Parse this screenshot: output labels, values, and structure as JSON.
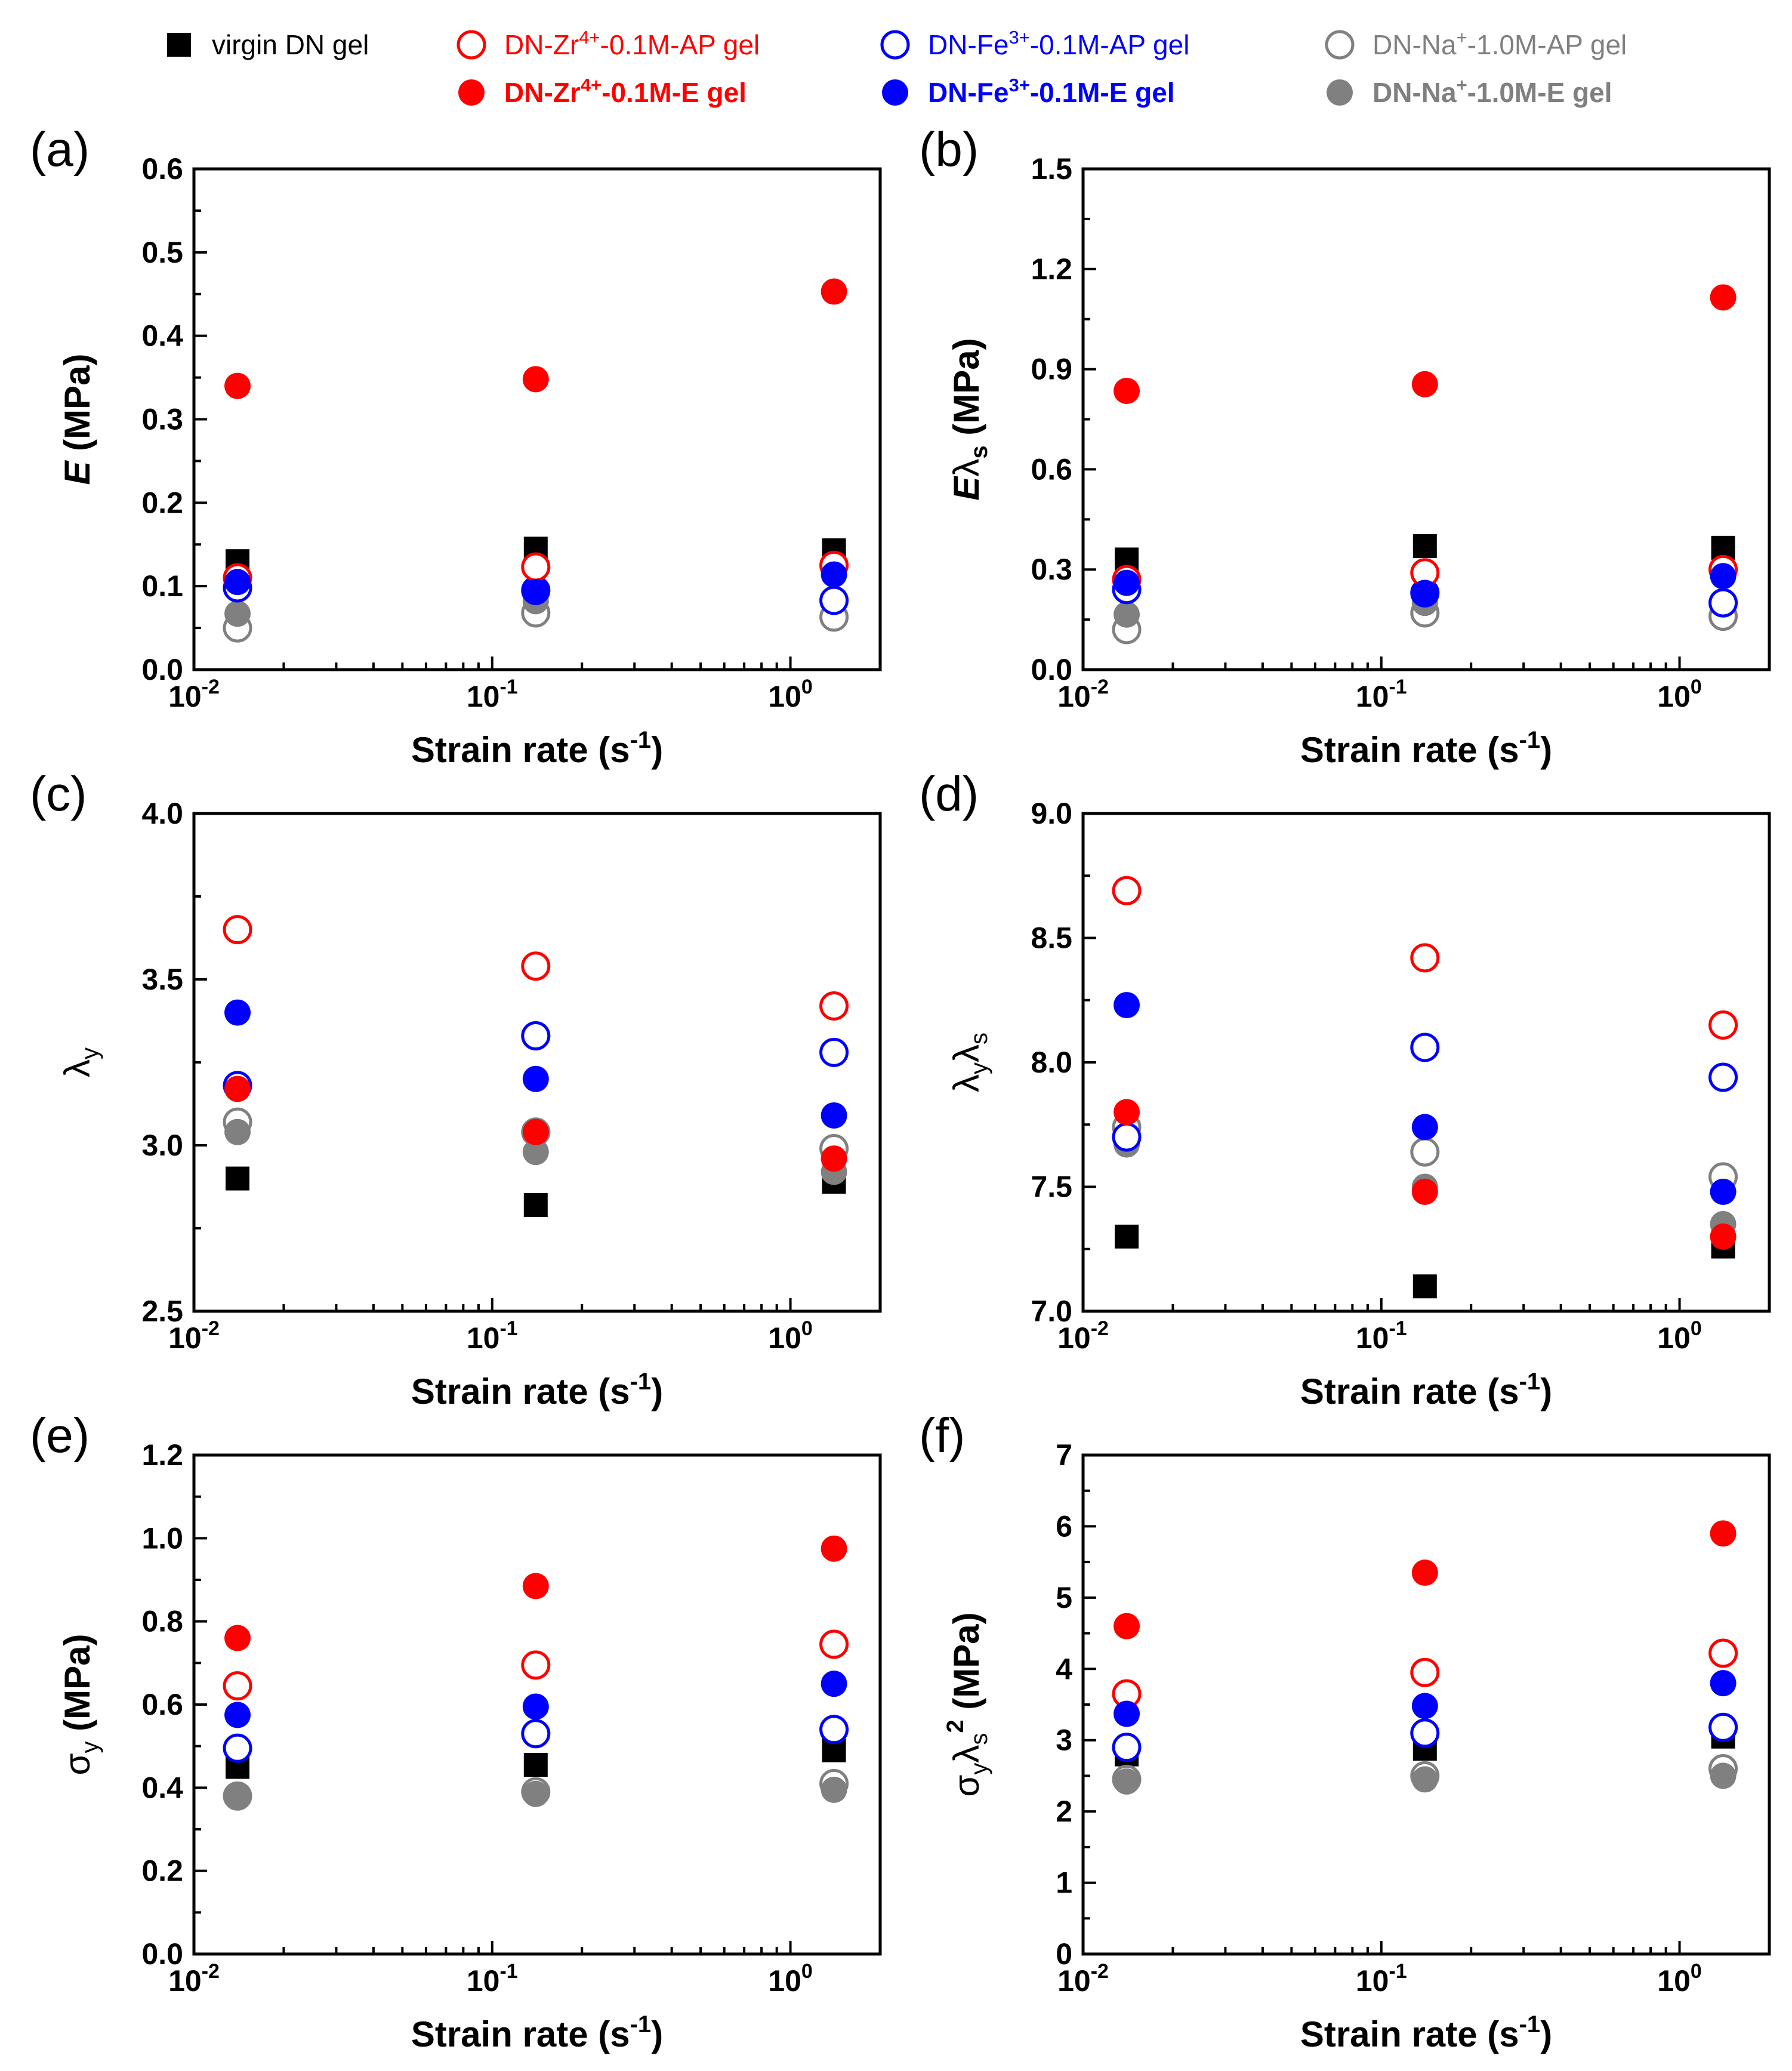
{
  "figure": {
    "legend": [
      {
        "id": "virgin",
        "label": "virgin DN gel",
        "color": "#000000",
        "marker": "square",
        "fill": true,
        "bold": false
      },
      {
        "id": "zr_ap",
        "label": "DN-Zr4+-0.1M-AP gel",
        "base": "DN-Zr",
        "sup": "4+",
        "rest": "-0.1M-AP gel",
        "color": "#ff0000",
        "marker": "circle",
        "fill": false,
        "bold": false
      },
      {
        "id": "fe_ap",
        "label": "DN-Fe3+-0.1M-AP gel",
        "base": "DN-Fe",
        "sup": "3+",
        "rest": "-0.1M-AP gel",
        "color": "#0000ff",
        "marker": "circle",
        "fill": false,
        "bold": false
      },
      {
        "id": "na_ap",
        "label": "DN-Na+-1.0M-AP gel",
        "base": "DN-Na",
        "sup": "+",
        "rest": "-1.0M-AP gel",
        "color": "#808080",
        "marker": "circle",
        "fill": false,
        "bold": false
      },
      {
        "id": "zr_e",
        "label": "DN-Zr4+-0.1M-E gel",
        "base": "DN-Zr",
        "sup": "4+",
        "rest": "-0.1M-E  gel",
        "color": "#ff0000",
        "marker": "circle",
        "fill": true,
        "bold": true
      },
      {
        "id": "fe_e",
        "label": "DN-Fe3+-0.1M-E gel",
        "base": "DN-Fe",
        "sup": "3+",
        "rest": "-0.1M-E gel",
        "color": "#0000ff",
        "marker": "circle",
        "fill": true,
        "bold": true
      },
      {
        "id": "na_e",
        "label": "DN-Na+-1.0M-E gel",
        "base": "DN-Na",
        "sup": "+",
        "rest": "-1.0M-E gel",
        "color": "#808080",
        "marker": "circle",
        "fill": true,
        "bold": true
      }
    ]
  },
  "chart_data": [
    {
      "panel": "(a)",
      "type": "scatter",
      "xscale": "log",
      "xlabel": "Strain rate (s-1)",
      "ylabel": "E (MPa)",
      "xlim": [
        0.01,
        2
      ],
      "ylim": [
        0,
        0.6
      ],
      "yticks": [
        "0.0",
        "0.1",
        "0.2",
        "0.3",
        "0.4",
        "0.5",
        "0.6"
      ],
      "x": [
        0.014,
        0.14,
        1.4
      ],
      "series": [
        {
          "id": "virgin",
          "values": [
            0.13,
            0.145,
            0.143
          ]
        },
        {
          "id": "zr_ap",
          "values": [
            0.11,
            0.123,
            0.125
          ]
        },
        {
          "id": "fe_ap",
          "values": [
            0.098,
            0.095,
            0.083
          ]
        },
        {
          "id": "na_ap",
          "values": [
            0.05,
            0.068,
            0.063
          ]
        },
        {
          "id": "zr_e",
          "values": [
            0.34,
            0.348,
            0.453
          ]
        },
        {
          "id": "fe_e",
          "values": [
            0.105,
            0.093,
            0.114
          ]
        },
        {
          "id": "na_e",
          "values": [
            0.067,
            0.082,
            0.083
          ]
        }
      ]
    },
    {
      "panel": "(b)",
      "type": "scatter",
      "xscale": "log",
      "xlabel": "Strain rate (s-1)",
      "ylabel": "Eλs (MPa)",
      "xlim": [
        0.01,
        2
      ],
      "ylim": [
        0,
        1.5
      ],
      "yticks": [
        "0.0",
        "0.3",
        "0.6",
        "0.9",
        "1.2",
        "1.5"
      ],
      "x": [
        0.014,
        0.14,
        1.4
      ],
      "series": [
        {
          "id": "virgin",
          "values": [
            0.33,
            0.37,
            0.365
          ]
        },
        {
          "id": "zr_ap",
          "values": [
            0.27,
            0.29,
            0.3
          ]
        },
        {
          "id": "fe_ap",
          "values": [
            0.24,
            0.23,
            0.2
          ]
        },
        {
          "id": "na_ap",
          "values": [
            0.12,
            0.17,
            0.16
          ]
        },
        {
          "id": "zr_e",
          "values": [
            0.835,
            0.855,
            1.115
          ]
        },
        {
          "id": "fe_e",
          "values": [
            0.26,
            0.23,
            0.28
          ]
        },
        {
          "id": "na_e",
          "values": [
            0.165,
            0.2,
            0.2
          ]
        }
      ]
    },
    {
      "panel": "(c)",
      "type": "scatter",
      "xscale": "log",
      "xlabel": "Strain rate (s-1)",
      "ylabel": "λy",
      "xlim": [
        0.01,
        2
      ],
      "ylim": [
        2.5,
        4.0
      ],
      "yticks": [
        "2.5",
        "3.0",
        "3.5",
        "4.0"
      ],
      "x": [
        0.014,
        0.14,
        1.4
      ],
      "series": [
        {
          "id": "virgin",
          "values": [
            2.9,
            2.82,
            2.89
          ]
        },
        {
          "id": "zr_ap",
          "values": [
            3.65,
            3.54,
            3.42
          ]
        },
        {
          "id": "fe_ap",
          "values": [
            3.18,
            3.33,
            3.28
          ]
        },
        {
          "id": "na_ap",
          "values": [
            3.07,
            3.04,
            2.99
          ]
        },
        {
          "id": "zr_e",
          "values": [
            3.17,
            3.04,
            2.96
          ]
        },
        {
          "id": "fe_e",
          "values": [
            3.4,
            3.2,
            3.09
          ]
        },
        {
          "id": "na_e",
          "values": [
            3.04,
            2.98,
            2.92
          ]
        }
      ]
    },
    {
      "panel": "(d)",
      "type": "scatter",
      "xscale": "log",
      "xlabel": "Strain rate (s-1)",
      "ylabel": "λyλs",
      "xlim": [
        0.01,
        2
      ],
      "ylim": [
        7.0,
        9.0
      ],
      "yticks": [
        "7.0",
        "7.5",
        "8.0",
        "8.5",
        "9.0"
      ],
      "x": [
        0.014,
        0.14,
        1.4
      ],
      "series": [
        {
          "id": "virgin",
          "values": [
            7.3,
            7.1,
            7.26
          ]
        },
        {
          "id": "zr_ap",
          "values": [
            8.69,
            8.42,
            8.15
          ]
        },
        {
          "id": "fe_ap",
          "values": [
            7.7,
            8.06,
            7.94
          ]
        },
        {
          "id": "na_ap",
          "values": [
            7.74,
            7.64,
            7.54
          ]
        },
        {
          "id": "zr_e",
          "values": [
            7.8,
            7.48,
            7.3
          ]
        },
        {
          "id": "fe_e",
          "values": [
            8.23,
            7.74,
            7.48
          ]
        },
        {
          "id": "na_e",
          "values": [
            7.67,
            7.5,
            7.35
          ]
        }
      ]
    },
    {
      "panel": "(e)",
      "type": "scatter",
      "xscale": "log",
      "xlabel": "Strain rate (s-1)",
      "ylabel": "σy (MPa)",
      "xlim": [
        0.01,
        2
      ],
      "ylim": [
        0,
        1.2
      ],
      "yticks": [
        "0.0",
        "0.2",
        "0.4",
        "0.6",
        "0.8",
        "1.0",
        "1.2"
      ],
      "x": [
        0.014,
        0.14,
        1.4
      ],
      "series": [
        {
          "id": "virgin",
          "values": [
            0.45,
            0.455,
            0.49
          ]
        },
        {
          "id": "zr_ap",
          "values": [
            0.645,
            0.695,
            0.745
          ]
        },
        {
          "id": "fe_ap",
          "values": [
            0.495,
            0.53,
            0.54
          ]
        },
        {
          "id": "na_ap",
          "values": [
            0.38,
            0.39,
            0.41
          ]
        },
        {
          "id": "zr_e",
          "values": [
            0.76,
            0.885,
            0.975
          ]
        },
        {
          "id": "fe_e",
          "values": [
            0.575,
            0.595,
            0.65
          ]
        },
        {
          "id": "na_e",
          "values": [
            0.38,
            0.385,
            0.395
          ]
        }
      ]
    },
    {
      "panel": "(f)",
      "type": "scatter",
      "xscale": "log",
      "xlabel": "Strain rate (s-1)",
      "ylabel": "σyλs2 (MPa)",
      "xlim": [
        0.01,
        2
      ],
      "ylim": [
        0,
        7
      ],
      "yticks": [
        "0",
        "1",
        "2",
        "3",
        "4",
        "5",
        "6",
        "7"
      ],
      "x": [
        0.014,
        0.14,
        1.4
      ],
      "series": [
        {
          "id": "virgin",
          "values": [
            2.8,
            2.88,
            3.05
          ]
        },
        {
          "id": "zr_ap",
          "values": [
            3.65,
            3.95,
            4.22
          ]
        },
        {
          "id": "fe_ap",
          "values": [
            2.9,
            3.1,
            3.18
          ]
        },
        {
          "id": "na_ap",
          "values": [
            2.45,
            2.5,
            2.6
          ]
        },
        {
          "id": "zr_e",
          "values": [
            4.6,
            5.35,
            5.9
          ]
        },
        {
          "id": "fe_e",
          "values": [
            3.37,
            3.48,
            3.8
          ]
        },
        {
          "id": "na_e",
          "values": [
            2.42,
            2.45,
            2.5
          ]
        }
      ]
    }
  ]
}
